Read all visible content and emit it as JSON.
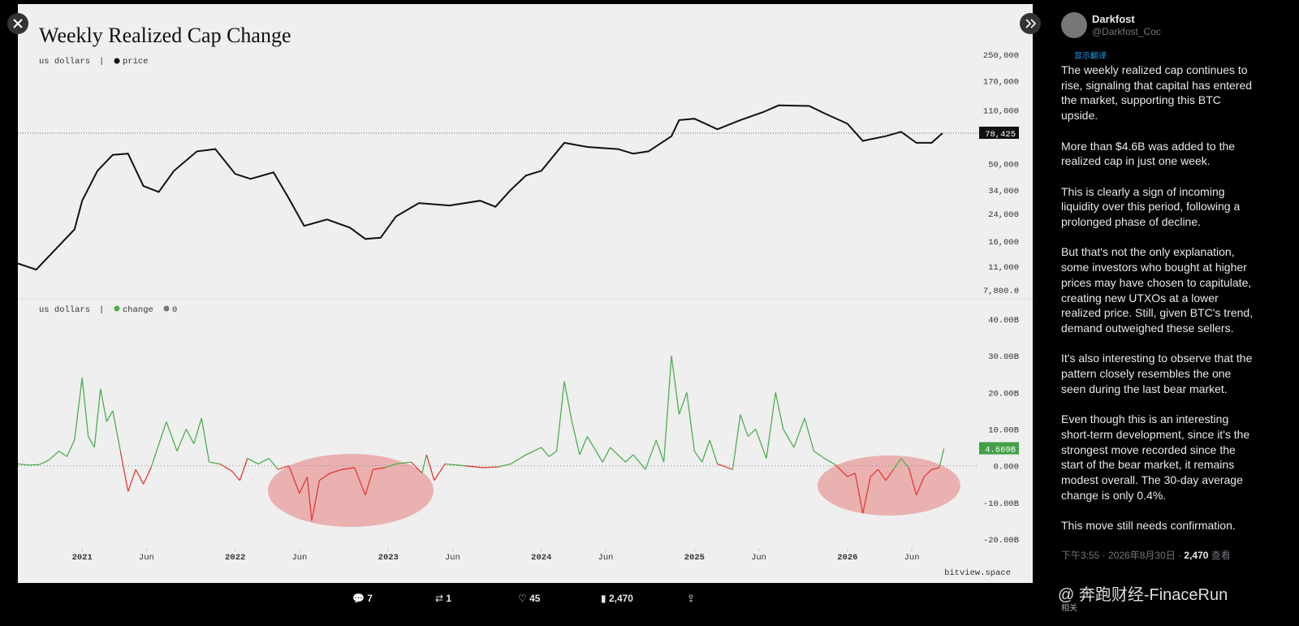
{
  "chart_data": [
    {
      "type": "line",
      "title": "Weekly Realized Cap Change",
      "unit_label": "us dollars",
      "log_scale": true,
      "series": [
        {
          "name": "price",
          "color": "#111111",
          "x": [
            2020.58,
            2020.7,
            2020.85,
            2020.95,
            2021.0,
            2021.1,
            2021.2,
            2021.3,
            2021.4,
            2021.5,
            2021.6,
            2021.75,
            2021.87,
            2022.0,
            2022.1,
            2022.25,
            2022.35,
            2022.45,
            2022.6,
            2022.75,
            2022.85,
            2022.95,
            2023.05,
            2023.2,
            2023.4,
            2023.6,
            2023.7,
            2023.8,
            2023.9,
            2024.0,
            2024.15,
            2024.3,
            2024.5,
            2024.6,
            2024.7,
            2024.85,
            2024.9,
            2025.0,
            2025.15,
            2025.3,
            2025.45,
            2025.55,
            2025.75,
            2025.85,
            2026.0,
            2026.1,
            2026.25,
            2026.35,
            2026.45,
            2026.55,
            2026.62
          ],
          "values": [
            11500,
            10500,
            15000,
            19000,
            29000,
            45000,
            57000,
            58000,
            36000,
            33000,
            45000,
            60000,
            62000,
            43000,
            40000,
            44000,
            30000,
            20000,
            22000,
            19500,
            16500,
            16800,
            23000,
            28000,
            27000,
            29000,
            26500,
            34000,
            42000,
            45000,
            68000,
            64000,
            62000,
            58000,
            60000,
            75000,
            95000,
            97000,
            83000,
            95000,
            107000,
            118000,
            117000,
            105000,
            90000,
            70000,
            75000,
            80000,
            68000,
            68000,
            78425
          ]
        }
      ],
      "xlim": [
        2020.58,
        2027.21
      ],
      "ylim": [
        7800,
        250000
      ],
      "yticks": [
        {
          "value": 7800,
          "label": "7,800.0"
        },
        {
          "value": 11000,
          "label": "11,000"
        },
        {
          "value": 16000,
          "label": "16,000"
        },
        {
          "value": 24000,
          "label": "24,000"
        },
        {
          "value": 34000,
          "label": "34,000"
        },
        {
          "value": 50000,
          "label": "50,000"
        },
        {
          "value": 110000,
          "label": "110,000"
        },
        {
          "value": 170000,
          "label": "170,000"
        },
        {
          "value": 250000,
          "label": "250,000"
        }
      ],
      "price_marker": {
        "value": 78425,
        "label": "78,425"
      }
    },
    {
      "type": "line",
      "unit_label": "us dollars",
      "zero_name": "0",
      "series": [
        {
          "name": "change",
          "color": "#4caf50",
          "negative_color": "#e53935",
          "x": [
            2020.58,
            2020.65,
            2020.72,
            2020.78,
            2020.85,
            2020.9,
            2020.95,
            2021.0,
            2021.04,
            2021.08,
            2021.12,
            2021.16,
            2021.2,
            2021.25,
            2021.3,
            2021.35,
            2021.4,
            2021.45,
            2021.55,
            2021.62,
            2021.68,
            2021.73,
            2021.78,
            2021.83,
            2021.9,
            2021.98,
            2022.03,
            2022.08,
            2022.15,
            2022.22,
            2022.28,
            2022.35,
            2022.42,
            2022.47,
            2022.5,
            2022.55,
            2022.62,
            2022.7,
            2022.78,
            2022.85,
            2022.9,
            2022.98,
            2023.05,
            2023.15,
            2023.22,
            2023.25,
            2023.3,
            2023.37,
            2023.5,
            2023.62,
            2023.72,
            2023.8,
            2023.9,
            2024.0,
            2024.05,
            2024.1,
            2024.15,
            2024.2,
            2024.25,
            2024.3,
            2024.4,
            2024.45,
            2024.55,
            2024.6,
            2024.68,
            2024.75,
            2024.8,
            2024.85,
            2024.9,
            2024.95,
            2025.0,
            2025.05,
            2025.1,
            2025.15,
            2025.25,
            2025.3,
            2025.35,
            2025.4,
            2025.47,
            2025.53,
            2025.58,
            2025.65,
            2025.72,
            2025.78,
            2025.85,
            2025.92,
            2026.0,
            2026.05,
            2026.1,
            2026.15,
            2026.2,
            2026.25,
            2026.3,
            2026.35,
            2026.4,
            2026.45,
            2026.5,
            2026.55,
            2026.6,
            2026.63
          ],
          "values": [
            0.5,
            0.2,
            0.3,
            1.5,
            4,
            2.5,
            7,
            24,
            8,
            5,
            21,
            12,
            15,
            4,
            -7,
            -1,
            -5,
            -0.5,
            12,
            4,
            10,
            6,
            13,
            1,
            0.5,
            -1.5,
            -4,
            2,
            0.5,
            2,
            -1,
            0,
            -7.5,
            -3,
            -15,
            -4,
            -2,
            -1,
            -0.5,
            -8,
            -1,
            -0.5,
            0.5,
            1,
            -2,
            3,
            -4,
            0.5,
            0,
            -0.5,
            -0.3,
            0.5,
            3,
            5,
            2.5,
            4,
            23,
            12,
            3,
            8,
            1,
            5,
            1,
            3,
            -1,
            7,
            1,
            30,
            14,
            20,
            4,
            1,
            7,
            0.5,
            -1,
            14,
            8,
            10,
            2,
            20,
            10,
            5,
            13,
            4,
            2,
            0.3,
            -3,
            -2,
            -13,
            -3,
            -1,
            -4,
            -1,
            2,
            -0.5,
            -8,
            -3,
            -1,
            -0.5,
            4.669
          ]
        }
      ],
      "xlim": [
        2020.58,
        2027.21
      ],
      "ylim": [
        -20,
        40
      ],
      "xticks": [
        {
          "value": 2021,
          "label": "2021"
        },
        {
          "value": 2021.42,
          "label": "Jun"
        },
        {
          "value": 2022,
          "label": "2022"
        },
        {
          "value": 2022.42,
          "label": "Jun"
        },
        {
          "value": 2023,
          "label": "2023"
        },
        {
          "value": 2023.42,
          "label": "Jun"
        },
        {
          "value": 2024,
          "label": "2024"
        },
        {
          "value": 2024.42,
          "label": "Jun"
        },
        {
          "value": 2025,
          "label": "2025"
        },
        {
          "value": 2025.42,
          "label": "Jun"
        },
        {
          "value": 2026,
          "label": "2026"
        },
        {
          "value": 2026.42,
          "label": "Jun"
        }
      ],
      "yticks": [
        {
          "value": -20,
          "label": "-20.00B"
        },
        {
          "value": -10,
          "label": "-10.00B"
        },
        {
          "value": 0,
          "label": "0.000"
        },
        {
          "value": 10,
          "label": "10.00B"
        },
        {
          "value": 20,
          "label": "20.00B"
        },
        {
          "value": 30,
          "label": "30.00B"
        },
        {
          "value": 40,
          "label": "40.00B"
        }
      ],
      "value_marker": {
        "value": 4.669,
        "label": "4.669B"
      },
      "source": "bitview.space"
    }
  ],
  "tweet": {
    "name": "Darkfost",
    "handle": "@Darkfost_Coc",
    "translate": "显示翻译",
    "paragraphs": [
      "The weekly realized cap continues to rise, signaling that capital has entered the market, supporting this BTC upside.",
      "More than $4.6B was added to the realized cap in just one week.",
      "This is clearly a sign of incoming liquidity over this period, following a prolonged phase of decline.",
      "But that's not the only explanation, some investors who bought at higher prices may have chosen to capitulate, creating new UTXOs at a lower realized price. Still, given BTC's trend, demand outweighed these sellers.",
      "It's also interesting to observe that the pattern closely resembles the one seen during the last bear market.",
      "Even though this is an interesting short-term development, since it's the strongest move recorded since the start of the bear market, it remains modest overall. The 30-day average change is only 0.4%.",
      "This move still needs confirmation."
    ],
    "time": "下午3:55 · 2026年8月30日 · ",
    "views": "2,470",
    "views_label": "查看",
    "watermark": "@ 奔跑财经-FinaceRun",
    "related": "相关"
  },
  "toolbar": {
    "replies": "7",
    "reposts": "1",
    "likes": "45",
    "views": "2,470"
  }
}
